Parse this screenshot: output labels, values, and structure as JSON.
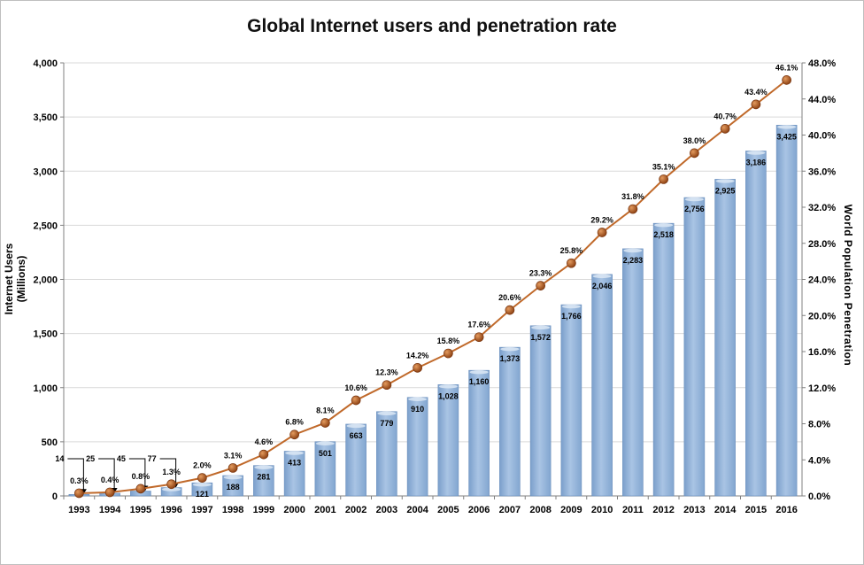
{
  "chart_data": {
    "type": "bar",
    "title": "Global Internet users and penetration rate",
    "categories": [
      "1993",
      "1994",
      "1995",
      "1996",
      "1997",
      "1998",
      "1999",
      "2000",
      "2001",
      "2002",
      "2003",
      "2004",
      "2005",
      "2006",
      "2007",
      "2008",
      "2009",
      "2010",
      "2011",
      "2012",
      "2013",
      "2014",
      "2015",
      "2016"
    ],
    "bar_labels": [
      "14",
      "25",
      "45",
      "77",
      "121",
      "188",
      "281",
      "413",
      "501",
      "663",
      "779",
      "910",
      "1,028",
      "1,160",
      "1,373",
      "1,572",
      "1,766",
      "2,046",
      "2,283",
      "2,518",
      "2,756",
      "2,925",
      "3,186",
      "3,425"
    ],
    "line_labels": [
      "0.3%",
      "0.4%",
      "0.8%",
      "1.3%",
      "2.0%",
      "3.1%",
      "4.6%",
      "6.8%",
      "8.1%",
      "10.6%",
      "12.3%",
      "14.2%",
      "15.8%",
      "17.6%",
      "20.6%",
      "23.3%",
      "25.8%",
      "29.2%",
      "31.8%",
      "35.1%",
      "38.0%",
      "40.7%",
      "43.4%",
      "46.1%"
    ],
    "series": [
      {
        "axis": "left",
        "type": "bar",
        "values": [
          14,
          25,
          45,
          77,
          121,
          188,
          281,
          413,
          501,
          663,
          779,
          910,
          1028,
          1160,
          1373,
          1572,
          1766,
          2046,
          2283,
          2518,
          2756,
          2925,
          3186,
          3425
        ]
      },
      {
        "axis": "right",
        "type": "line",
        "values": [
          0.3,
          0.4,
          0.8,
          1.3,
          2.0,
          3.1,
          4.6,
          6.8,
          8.1,
          10.6,
          12.3,
          14.2,
          15.8,
          17.6,
          20.6,
          23.3,
          25.8,
          29.2,
          31.8,
          35.1,
          38.0,
          40.7,
          43.4,
          46.1
        ]
      }
    ],
    "ylabel": "Internet Users (Millions)",
    "ylabel_lines": [
      "Internet Users",
      "(Millions)"
    ],
    "y2label": "World Population Penetration",
    "ylim": [
      0,
      4000
    ],
    "y2lim": [
      0,
      48
    ],
    "yticks": [
      "0",
      "500",
      "1,000",
      "1,500",
      "2,000",
      "2,500",
      "3,000",
      "3,500",
      "4,000"
    ],
    "y2ticks": [
      "0.0%",
      "4.0%",
      "8.0%",
      "12.0%",
      "16.0%",
      "20.0%",
      "24.0%",
      "28.0%",
      "32.0%",
      "36.0%",
      "40.0%",
      "44.0%",
      "48.0%"
    ],
    "grid": true,
    "legend": "none",
    "colors": {
      "bar": "#95b3d7",
      "bar_dark": "#6f95c2",
      "line": "#c0692a",
      "marker": "#a4521c",
      "grid": "#d9d9d9"
    }
  }
}
